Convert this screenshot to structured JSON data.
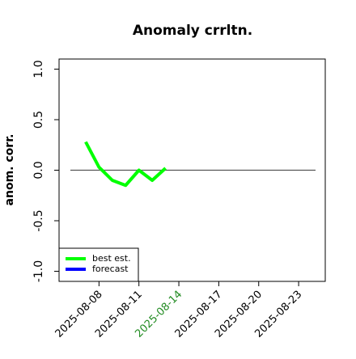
{
  "chart_data": {
    "type": "line",
    "title": "Anomaly crrltn.",
    "y_label": "anom. corr.",
    "x": [
      "2025-08-07",
      "2025-08-08",
      "2025-08-09",
      "2025-08-10",
      "2025-08-11",
      "2025-08-12",
      "2025-08-13"
    ],
    "series": [
      {
        "name": "best est.",
        "color": "#00ff00",
        "values": [
          0.28,
          0.03,
          -0.1,
          -0.15,
          0.0,
          -0.1,
          0.02
        ]
      },
      {
        "name": "forecast",
        "color": "#0000ff",
        "values": [
          null,
          null,
          null,
          null,
          null,
          null,
          null
        ]
      }
    ],
    "xlim": [
      "2025-08-05",
      "2025-08-25"
    ],
    "xticks": [
      "2025-08-08",
      "2025-08-11",
      "2025-08-14",
      "2025-08-17",
      "2025-08-20",
      "2025-08-23"
    ],
    "xtick_colors": [
      "#000000",
      "#000000",
      "#228b22",
      "#000000",
      "#000000",
      "#000000"
    ],
    "ylim": [
      -1.1,
      1.1
    ],
    "yticks": [
      {
        "value": -1,
        "label": "-1.0"
      },
      {
        "value": -0.5,
        "label": "-0.5"
      },
      {
        "value": 0,
        "label": "0.0"
      },
      {
        "value": 0.5,
        "label": "0.5"
      },
      {
        "value": 1,
        "label": "1.0"
      }
    ],
    "hline": 0,
    "legend": "bottom-left"
  }
}
